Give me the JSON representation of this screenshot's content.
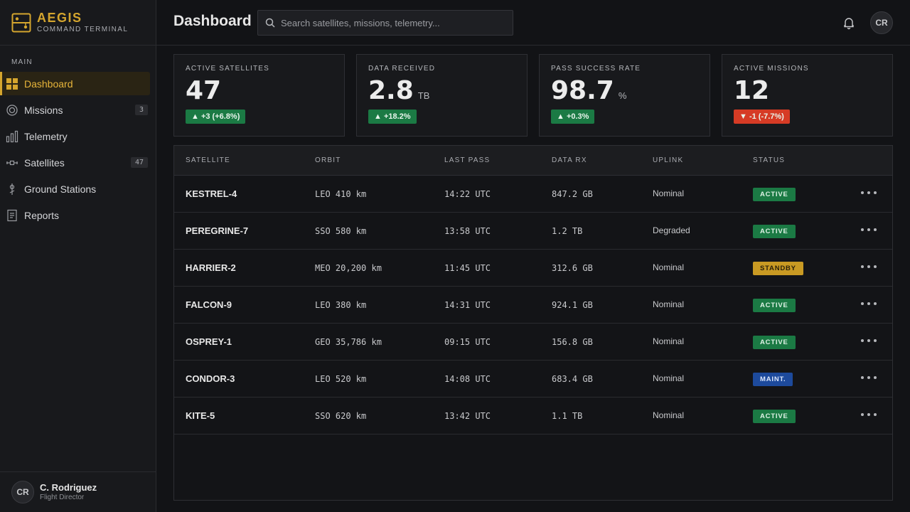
{
  "brand": {
    "name": "AEGIS",
    "subtitle": "COMMAND TERMINAL"
  },
  "sidebar": {
    "section": "MAIN",
    "items": [
      {
        "label": "Dashboard",
        "icon": "grid-icon",
        "active": true,
        "badge": null
      },
      {
        "label": "Missions",
        "icon": "target-icon",
        "active": false,
        "badge": "3"
      },
      {
        "label": "Telemetry",
        "icon": "bar-chart-icon",
        "active": false,
        "badge": null
      },
      {
        "label": "Satellites",
        "icon": "satellite-icon",
        "active": false,
        "badge": "47"
      },
      {
        "label": "Ground Stations",
        "icon": "antenna-icon",
        "active": false,
        "badge": null
      },
      {
        "label": "Reports",
        "icon": "document-icon",
        "active": false,
        "badge": null
      }
    ],
    "user": {
      "initials": "CR",
      "name": "C. Rodriguez",
      "role": "Flight Director"
    }
  },
  "header": {
    "title": "Dashboard",
    "search_placeholder": "Search satellites, missions, telemetry...",
    "avatar_initials": "CR"
  },
  "stats": [
    {
      "label": "ACTIVE SATELLITES",
      "value": "47",
      "unit": "",
      "delta": "▲ +3 (+6.8%)",
      "trend": "up"
    },
    {
      "label": "DATA RECEIVED",
      "value": "2.8",
      "unit": "TB",
      "delta": "▲ +18.2%",
      "trend": "up"
    },
    {
      "label": "PASS SUCCESS RATE",
      "value": "98.7",
      "unit": "%",
      "delta": "▲ +0.3%",
      "trend": "up"
    },
    {
      "label": "ACTIVE MISSIONS",
      "value": "12",
      "unit": "",
      "delta": "▼ -1 (-7.7%)",
      "trend": "down"
    }
  ],
  "table": {
    "columns": [
      "SATELLITE",
      "ORBIT",
      "LAST PASS",
      "DATA RX",
      "UPLINK",
      "STATUS"
    ],
    "rows": [
      {
        "satellite": "KESTREL-4",
        "orbit": "LEO 410 km",
        "last_pass": "14:22 UTC",
        "data_rx": "847.2 GB",
        "uplink": "Nominal",
        "status": "ACTIVE"
      },
      {
        "satellite": "PEREGRINE-7",
        "orbit": "SSO 580 km",
        "last_pass": "13:58 UTC",
        "data_rx": "1.2 TB",
        "uplink": "Degraded",
        "status": "ACTIVE"
      },
      {
        "satellite": "HARRIER-2",
        "orbit": "MEO 20,200 km",
        "last_pass": "11:45 UTC",
        "data_rx": "312.6 GB",
        "uplink": "Nominal",
        "status": "STANDBY"
      },
      {
        "satellite": "FALCON-9",
        "orbit": "LEO 380 km",
        "last_pass": "14:31 UTC",
        "data_rx": "924.1 GB",
        "uplink": "Nominal",
        "status": "ACTIVE"
      },
      {
        "satellite": "OSPREY-1",
        "orbit": "GEO 35,786 km",
        "last_pass": "09:15 UTC",
        "data_rx": "156.8 GB",
        "uplink": "Nominal",
        "status": "ACTIVE"
      },
      {
        "satellite": "CONDOR-3",
        "orbit": "LEO 520 km",
        "last_pass": "14:08 UTC",
        "data_rx": "683.4 GB",
        "uplink": "Nominal",
        "status": "MAINT."
      },
      {
        "satellite": "KITE-5",
        "orbit": "SSO 620 km",
        "last_pass": "13:42 UTC",
        "data_rx": "1.1 TB",
        "uplink": "Nominal",
        "status": "ACTIVE"
      }
    ]
  },
  "colors": {
    "accent": "#d4a52e",
    "active": "#1b7a44",
    "standby": "#c99a23",
    "maint": "#1d4a9c",
    "down": "#d63b25"
  }
}
